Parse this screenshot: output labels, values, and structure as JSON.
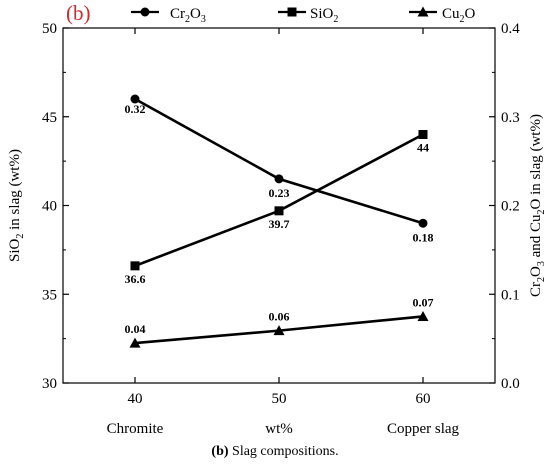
{
  "chart_data": {
    "type": "line",
    "panel_label": "(b)",
    "x": [
      40,
      50,
      60
    ],
    "x_tick_labels": [
      "40",
      "50",
      "60"
    ],
    "x_category_labels": [
      "Chromite",
      "wt%",
      "Copper slag"
    ],
    "xlim": [
      35,
      65
    ],
    "left_axis": {
      "label_prefix": "SiO",
      "label_sub": "2",
      "label_suffix": " in slag (wt%)",
      "ylim": [
        30,
        50
      ],
      "ticks": [
        30,
        35,
        40,
        45,
        50
      ]
    },
    "right_axis": {
      "label_parts": [
        {
          "t": "Cr",
          "s": false
        },
        {
          "t": "2",
          "s": true
        },
        {
          "t": "O",
          "s": false
        },
        {
          "t": "3",
          "s": true
        },
        {
          "t": " and Cu",
          "s": false
        },
        {
          "t": "2",
          "s": true
        },
        {
          "t": "O in slag (wt%)",
          "s": false
        }
      ],
      "ylim": [
        0,
        0.4
      ],
      "ticks": [
        "0.0",
        "0.1",
        "0.2",
        "0.3",
        "0.4"
      ]
    },
    "series": [
      {
        "key": "cr2o3",
        "name_base": "Cr",
        "name_parts": [
          {
            "t": "Cr",
            "s": false
          },
          {
            "t": "2",
            "s": true
          },
          {
            "t": "O",
            "s": false
          },
          {
            "t": "3",
            "s": true
          }
        ],
        "axis": "right",
        "marker": "circle",
        "values": [
          0.32,
          0.23,
          0.18
        ],
        "labels": [
          "0.32",
          "0.23",
          "0.18"
        ]
      },
      {
        "key": "sio2",
        "name_parts": [
          {
            "t": "SiO",
            "s": false
          },
          {
            "t": "2",
            "s": true
          }
        ],
        "axis": "left",
        "marker": "square",
        "values": [
          36.6,
          39.7,
          44
        ],
        "labels": [
          "36.6",
          "39.7",
          "44"
        ]
      },
      {
        "key": "cu2o",
        "name_parts": [
          {
            "t": "Cu",
            "s": false
          },
          {
            "t": "2",
            "s": true
          },
          {
            "t": "O",
            "s": false
          }
        ],
        "axis": "right",
        "marker": "triangle",
        "values": [
          0.045,
          0.059,
          0.075
        ],
        "labels": [
          "0.04",
          "0.06",
          "0.07"
        ]
      }
    ],
    "legend_placement": "top-center",
    "grid": false
  },
  "caption": {
    "label": "(b)",
    "text": " Slag compositions."
  }
}
